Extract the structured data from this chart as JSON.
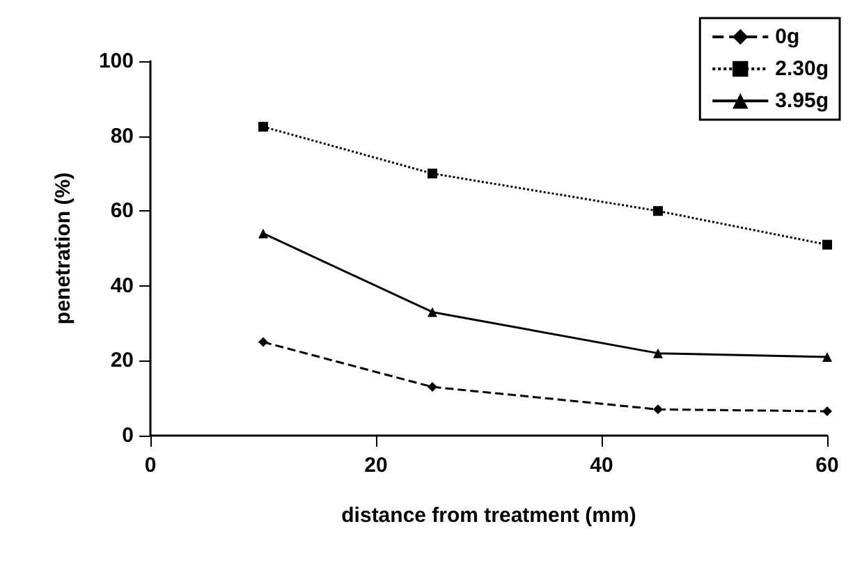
{
  "chart_data": {
    "type": "line",
    "xlabel": "distance from treatment (mm)",
    "ylabel": "penetration (%)",
    "x": [
      10,
      25,
      45,
      60
    ],
    "series": [
      {
        "name": "0g",
        "color": "#000000",
        "values": [
          25,
          13,
          7,
          6.5
        ],
        "marker": "diamond",
        "line_style": "dashed"
      },
      {
        "name": "2.30g",
        "color": "#000000",
        "values": [
          82.5,
          70,
          60,
          51
        ],
        "marker": "square",
        "line_style": "dotted"
      },
      {
        "name": "3.95g",
        "color": "#000000",
        "values": [
          54,
          33,
          22,
          21
        ],
        "marker": "triangle",
        "line_style": "solid"
      }
    ],
    "xlim": [
      0,
      60
    ],
    "xticks": [
      0,
      20,
      40,
      60
    ],
    "ylim": [
      0,
      100
    ],
    "yticks": [
      0,
      20,
      40,
      60,
      80,
      100
    ],
    "grid": false,
    "legend": "top right"
  }
}
